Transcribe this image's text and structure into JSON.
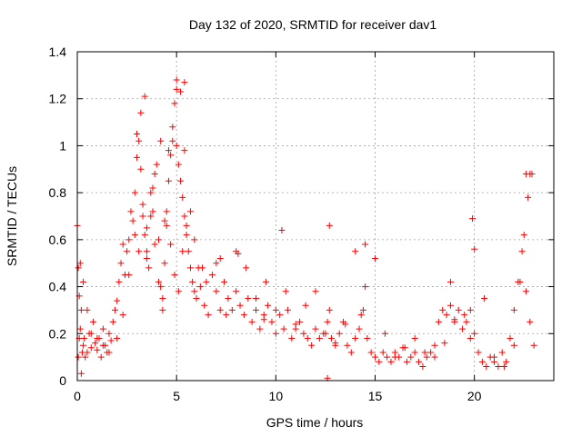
{
  "chart_data": {
    "type": "scatter",
    "title": "Day 132 of 2020, SRMTID for receiver dav1",
    "xlabel": "GPS time / hours",
    "ylabel": "SRMTID / TECUs",
    "xlim": [
      0,
      24
    ],
    "ylim": [
      0,
      1.4
    ],
    "xticks": [
      0,
      5,
      10,
      15,
      20
    ],
    "yticks": [
      0,
      0.2,
      0.4,
      0.6,
      0.8,
      1,
      1.2,
      1.4
    ],
    "xtick_labels": [
      "0",
      "5",
      "10",
      "15",
      "20"
    ],
    "ytick_labels": [
      "0",
      "0.2",
      "0.4",
      "0.6",
      "0.8",
      "1",
      "1.2",
      "1.4"
    ],
    "grid": true,
    "marker": "+",
    "series": [
      {
        "name": "dav1",
        "color": "#ff0000",
        "x": [
          0.0,
          0.05,
          0.1,
          0.15,
          0.2,
          0.25,
          0.3,
          0.35,
          0.4,
          0.5,
          0.6,
          0.7,
          0.8,
          0.9,
          1.0,
          1.1,
          1.2,
          1.3,
          1.4,
          1.5,
          1.6,
          1.7,
          1.8,
          1.9,
          2.0,
          2.1,
          2.2,
          2.3,
          2.4,
          2.5,
          2.6,
          2.7,
          2.8,
          2.9,
          3.0,
          3.1,
          3.2,
          3.3,
          3.4,
          3.5,
          3.6,
          3.7,
          3.8,
          3.9,
          4.0,
          4.1,
          4.2,
          4.3,
          4.4,
          4.5,
          4.6,
          4.7,
          4.8,
          4.9,
          5.0,
          5.1,
          5.2,
          5.3,
          5.4,
          5.5,
          5.6,
          5.7,
          5.8,
          5.9,
          6.0,
          6.2,
          6.4,
          6.6,
          6.8,
          7.0,
          7.2,
          7.4,
          7.6,
          7.8,
          8.0,
          8.2,
          8.4,
          8.6,
          8.8,
          9.0,
          9.2,
          9.4,
          9.6,
          9.8,
          10.0,
          10.2,
          10.4,
          10.6,
          10.8,
          11.0,
          11.2,
          11.4,
          11.6,
          11.8,
          12.0,
          12.2,
          12.4,
          12.6,
          12.8,
          13.0,
          13.2,
          13.4,
          13.6,
          13.8,
          14.0,
          14.2,
          14.4,
          14.6,
          14.8,
          15.0,
          15.2,
          15.4,
          15.6,
          15.8,
          16.0,
          16.2,
          16.4,
          16.6,
          16.8,
          17.0,
          17.2,
          17.4,
          17.6,
          17.8,
          18.0,
          18.2,
          18.4,
          18.6,
          18.8,
          19.0,
          19.2,
          19.4,
          19.6,
          19.8,
          20.0,
          20.2,
          20.4,
          20.6,
          20.8,
          21.0,
          21.2,
          21.4,
          21.6,
          21.8,
          22.0,
          22.2,
          22.4,
          22.6,
          22.8,
          23.0,
          0.05,
          0.15,
          0.3,
          0.5,
          0.7,
          1.0,
          1.3,
          1.6,
          2.0,
          2.3,
          2.6,
          2.9,
          3.1,
          3.3,
          3.5,
          3.7,
          3.9,
          4.1,
          4.3,
          4.5,
          4.7,
          4.9,
          5.1,
          5.3,
          5.5,
          5.7,
          5.9,
          6.1,
          6.5,
          7.0,
          7.5,
          8.0,
          8.5,
          9.0,
          9.5,
          10.0,
          10.5,
          11.0,
          11.5,
          12.0,
          12.5,
          12.7,
          13.0,
          13.5,
          14.0,
          14.3,
          14.5,
          15.0,
          15.5,
          16.0,
          16.5,
          17.0,
          17.5,
          18.0,
          18.5,
          19.0,
          19.5,
          19.8,
          20.0,
          20.5,
          21.0,
          21.5,
          22.0,
          22.3,
          22.5,
          22.7,
          22.8,
          3.2,
          3.4,
          3.8,
          4.2,
          4.6,
          5.0,
          5.2,
          5.4,
          5.0,
          4.8,
          10.3,
          12.7,
          14.5,
          18.8,
          19.9,
          22.6,
          22.9,
          0.2,
          0.1,
          12.6,
          5.4,
          3.0,
          3.5,
          4.4,
          6.3,
          7.2,
          8.1,
          9.4
        ],
        "y": [
          0.66,
          0.48,
          0.36,
          0.22,
          0.03,
          0.12,
          0.15,
          0.18,
          0.1,
          0.12,
          0.2,
          0.14,
          0.25,
          0.16,
          0.13,
          0.18,
          0.1,
          0.22,
          0.15,
          0.12,
          0.2,
          0.17,
          0.25,
          0.3,
          0.34,
          0.42,
          0.5,
          0.58,
          0.45,
          0.55,
          0.6,
          0.72,
          0.68,
          0.8,
          0.95,
          1.02,
          0.9,
          0.75,
          0.62,
          0.55,
          0.48,
          0.7,
          0.82,
          0.88,
          0.92,
          0.6,
          0.4,
          0.3,
          0.5,
          0.72,
          0.85,
          0.96,
          1.08,
          1.18,
          1.0,
          0.92,
          0.85,
          0.78,
          0.7,
          0.62,
          0.55,
          0.48,
          0.42,
          0.38,
          0.35,
          0.4,
          0.32,
          0.28,
          0.45,
          0.38,
          0.3,
          0.42,
          0.35,
          0.3,
          0.38,
          0.32,
          0.28,
          0.35,
          0.25,
          0.3,
          0.22,
          0.28,
          0.32,
          0.25,
          0.2,
          0.28,
          0.22,
          0.3,
          0.18,
          0.22,
          0.25,
          0.2,
          0.18,
          0.15,
          0.22,
          0.18,
          0.2,
          0.25,
          0.18,
          0.15,
          0.2,
          0.25,
          0.15,
          0.12,
          0.18,
          0.22,
          0.3,
          0.18,
          0.12,
          0.1,
          0.08,
          0.12,
          0.1,
          0.08,
          0.12,
          0.1,
          0.14,
          0.08,
          0.1,
          0.12,
          0.08,
          0.06,
          0.1,
          0.12,
          0.15,
          0.25,
          0.3,
          0.28,
          0.32,
          0.26,
          0.3,
          0.22,
          0.25,
          0.18,
          0.2,
          0.12,
          0.08,
          0.06,
          0.1,
          0.08,
          0.06,
          0.12,
          0.08,
          0.18,
          0.3,
          0.42,
          0.55,
          0.38,
          0.25,
          0.15,
          0.1,
          0.5,
          0.42,
          0.3,
          0.2,
          0.18,
          0.15,
          0.12,
          0.18,
          0.28,
          0.45,
          0.62,
          0.55,
          0.7,
          0.65,
          0.8,
          0.58,
          0.42,
          0.35,
          0.66,
          0.58,
          0.45,
          0.38,
          0.55,
          0.66,
          0.72,
          0.6,
          0.48,
          0.42,
          0.5,
          0.28,
          0.55,
          0.48,
          0.35,
          0.42,
          0.3,
          0.38,
          0.24,
          0.32,
          0.38,
          0.2,
          0.3,
          0.16,
          0.24,
          0.55,
          0.28,
          0.4,
          0.52,
          0.2,
          0.1,
          0.14,
          0.18,
          0.12,
          0.1,
          0.16,
          0.25,
          0.28,
          0.3,
          0.56,
          0.35,
          0.1,
          0.06,
          0.15,
          0.42,
          0.62,
          0.78,
          0.88,
          1.14,
          1.21,
          0.72,
          1.02,
          0.98,
          1.28,
          1.23,
          1.27,
          1.24,
          1.02,
          0.64,
          0.66,
          0.58,
          0.42,
          0.69,
          0.88,
          0.88,
          0.3,
          0.18,
          0.01,
          0.98,
          1.05,
          0.52,
          0.68,
          0.48,
          0.52,
          0.54,
          0.26
        ]
      }
    ]
  }
}
